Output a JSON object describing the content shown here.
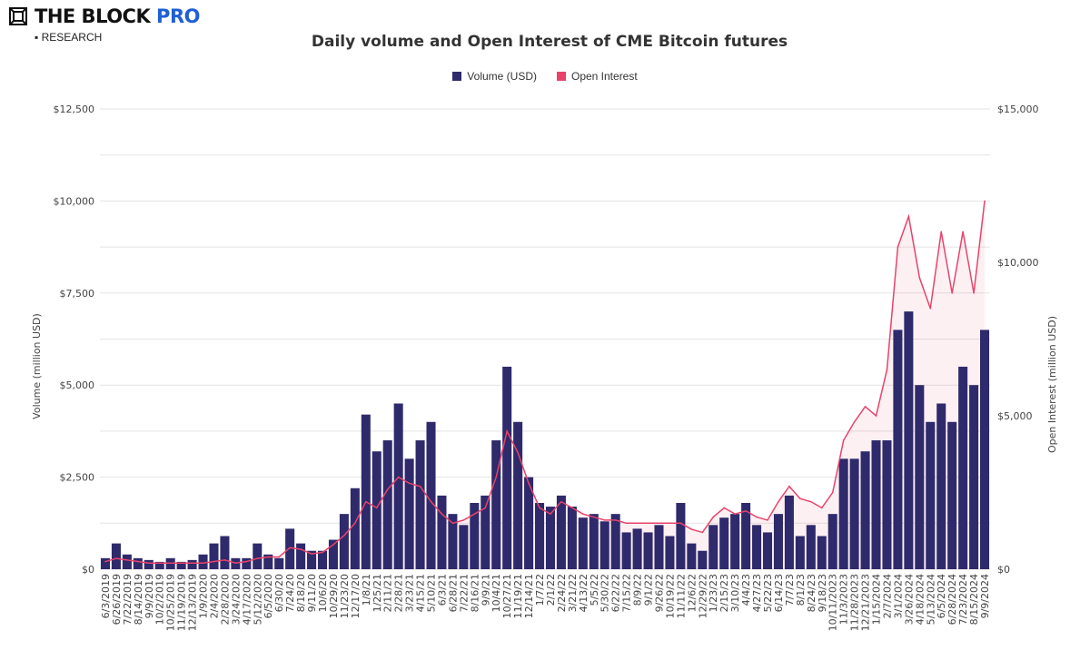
{
  "brand": {
    "name": "THE BLOCK",
    "pro": "PRO",
    "sub": "RESEARCH"
  },
  "chart_data": {
    "type": "bar+line",
    "title": "Daily volume and Open Interest of CME Bitcoin futures",
    "ylabel": "Volume (million USD)",
    "y2label": "Open Interest (million USD)",
    "ylim": [
      0,
      12500
    ],
    "y2lim": [
      0,
      15000
    ],
    "yticks": [
      "$0",
      "$2,500",
      "$5,000",
      "$7,500",
      "$10,000",
      "$12,500"
    ],
    "y2ticks": [
      "$0",
      "$5,000",
      "$10,000",
      "$15,000"
    ],
    "grid": true,
    "legend_position": "top",
    "colors": {
      "volume": "#2e2a6b",
      "open_interest": "#e8436a"
    },
    "x": [
      "6/3/2019",
      "6/26/2019",
      "7/22/2019",
      "8/14/2019",
      "9/9/2019",
      "10/2/2019",
      "10/25/2019",
      "11/19/2019",
      "12/13/2019",
      "1/9/2020",
      "2/4/2020",
      "2/28/2020",
      "3/24/2020",
      "4/17/2020",
      "5/12/2020",
      "6/5/2020",
      "6/30/20",
      "7/24/20",
      "8/18/20",
      "9/11/20",
      "10/6/20",
      "10/29/20",
      "11/23/20",
      "12/17/20",
      "1/8/21",
      "1/25/21",
      "2/11/21",
      "2/28/21",
      "3/23/21",
      "4/15/21",
      "5/10/21",
      "6/3/21",
      "6/28/21",
      "7/22/21",
      "8/16/21",
      "9/9/21",
      "10/4/21",
      "10/27/21",
      "11/19/21",
      "12/14/21",
      "1/7/22",
      "2/1/22",
      "2/24/22",
      "3/21/22",
      "4/13/22",
      "5/5/22",
      "5/30/22",
      "6/22/22",
      "7/15/22",
      "8/9/22",
      "9/1/22",
      "9/26/22",
      "10/19/22",
      "11/11/22",
      "12/6/22",
      "12/29/22",
      "1/23/23",
      "2/15/23",
      "3/10/23",
      "4/4/23",
      "4/27/23",
      "5/22/23",
      "6/14/23",
      "7/7/23",
      "8/1/23",
      "8/24/23",
      "9/18/23",
      "10/11/2023",
      "11/3/2023",
      "11/28/2023",
      "12/21/2023",
      "1/15/2024",
      "2/7/2024",
      "3/1/2024",
      "3/26/2024",
      "4/18/2024",
      "5/13/2024",
      "6/5/2024",
      "6/28/2024",
      "7/23/2024",
      "8/15/2024",
      "9/9/2024"
    ],
    "series": [
      {
        "name": "Volume (USD)",
        "type": "bar",
        "axis": "left",
        "values": [
          300,
          700,
          400,
          300,
          250,
          200,
          300,
          200,
          250,
          400,
          700,
          900,
          300,
          300,
          700,
          400,
          300,
          1100,
          700,
          500,
          500,
          800,
          1500,
          2200,
          4200,
          3200,
          3500,
          4500,
          3000,
          3500,
          4000,
          2000,
          1500,
          1200,
          1800,
          2000,
          3500,
          5500,
          4000,
          2500,
          1800,
          1700,
          2000,
          1700,
          1400,
          1500,
          1300,
          1500,
          1000,
          1100,
          1000,
          1200,
          900,
          1800,
          700,
          500,
          1200,
          1400,
          1500,
          1800,
          1200,
          1000,
          1500,
          2000,
          900,
          1200,
          900,
          1500,
          3000,
          3000,
          3200,
          3500,
          3500,
          6500,
          7000,
          5000,
          4000,
          4500,
          4000,
          5500,
          5000,
          6500
        ]
      },
      {
        "name": "Open Interest",
        "type": "line",
        "axis": "right",
        "values": [
          250,
          350,
          300,
          250,
          200,
          200,
          200,
          200,
          200,
          200,
          250,
          300,
          200,
          250,
          350,
          400,
          400,
          700,
          650,
          500,
          550,
          800,
          1100,
          1500,
          2200,
          2000,
          2600,
          3000,
          2800,
          2700,
          2200,
          1800,
          1500,
          1600,
          1800,
          2000,
          3000,
          4500,
          3800,
          2800,
          2000,
          1800,
          2200,
          2000,
          1800,
          1700,
          1600,
          1600,
          1500,
          1500,
          1500,
          1500,
          1500,
          1500,
          1300,
          1200,
          1700,
          2000,
          1800,
          1900,
          1700,
          1600,
          2200,
          2700,
          2300,
          2200,
          2000,
          2500,
          4200,
          4800,
          5300,
          5000,
          6500,
          10500,
          11500,
          9500,
          8500,
          11000,
          9000,
          11000,
          9000,
          12000
        ]
      }
    ]
  }
}
